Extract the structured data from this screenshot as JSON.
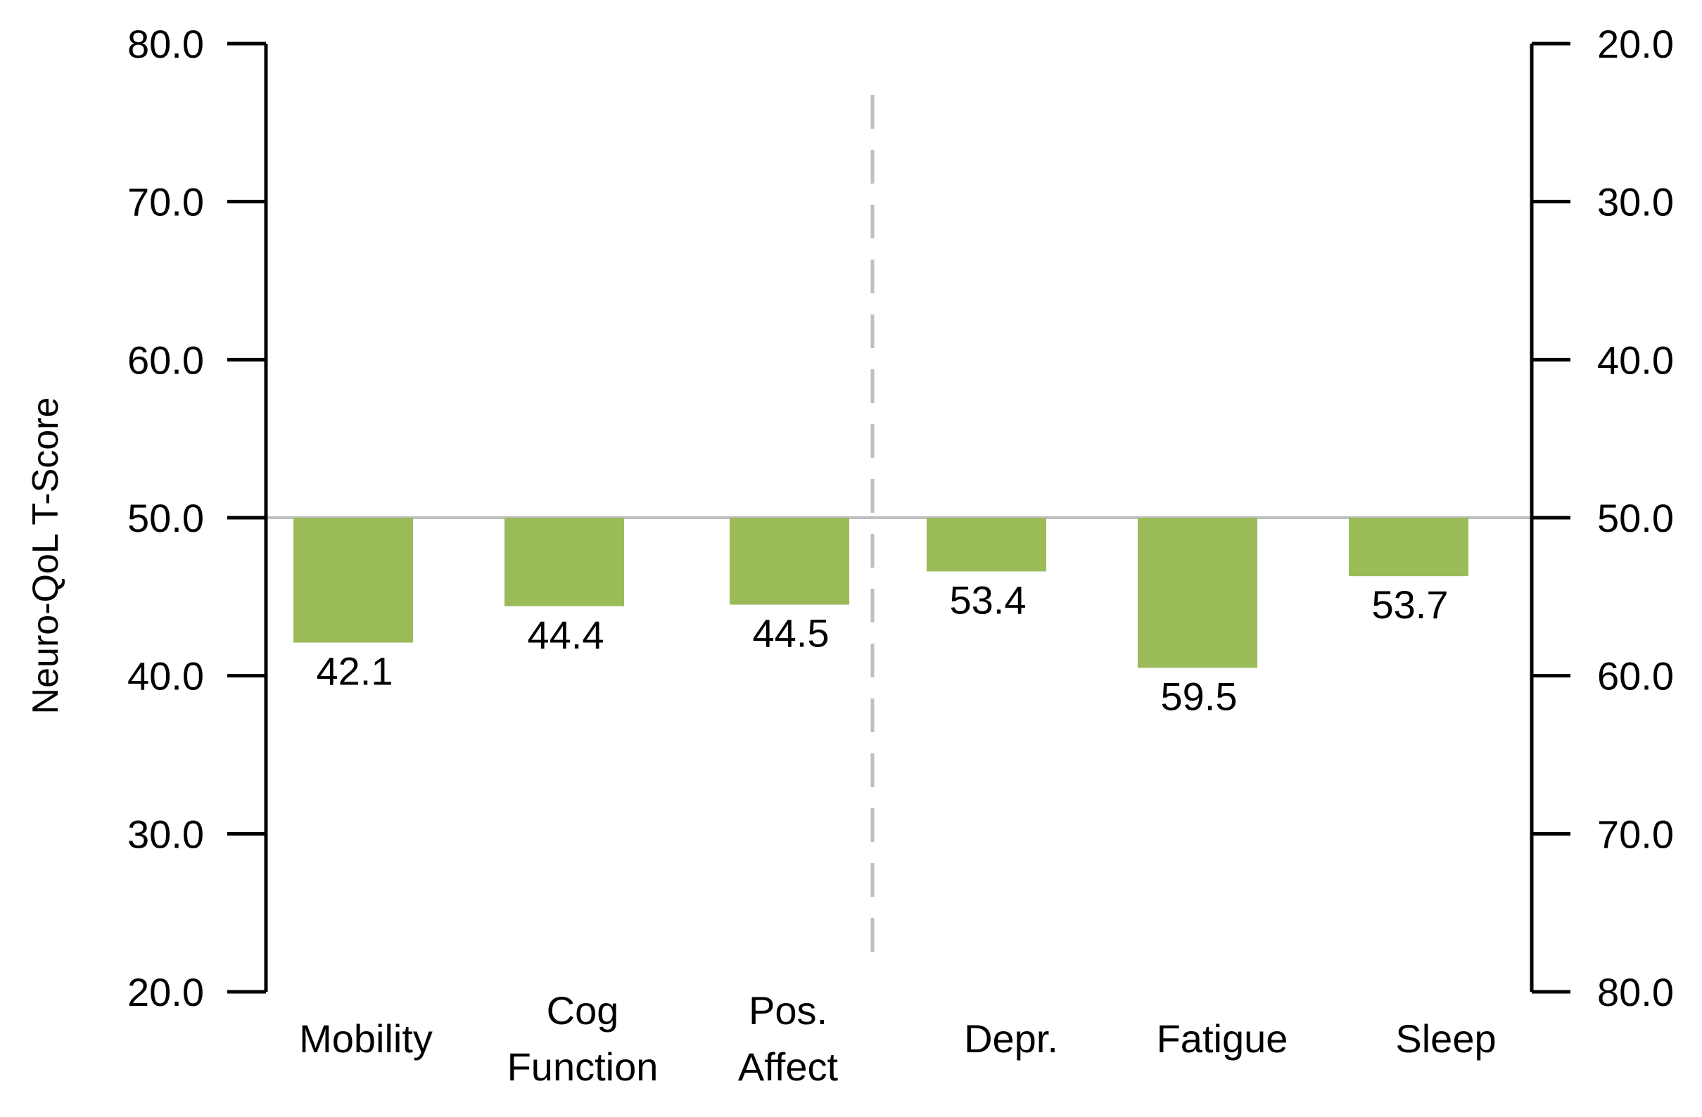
{
  "chart_data": {
    "type": "bar",
    "ylabel": "Neuro-QoL T-Score",
    "baseline": 50.0,
    "ylim": [
      20.0,
      80.0
    ],
    "yticks": [
      "20.0",
      "30.0",
      "40.0",
      "50.0",
      "60.0",
      "70.0",
      "80.0"
    ],
    "y2ticks": [
      "80.0",
      "70.0",
      "60.0",
      "50.0",
      "40.0",
      "30.0",
      "20.0"
    ],
    "y2lim": [
      80.0,
      20.0
    ],
    "categories": [
      {
        "lines": [
          "Mobility"
        ]
      },
      {
        "lines": [
          "Cog",
          "Function"
        ]
      },
      {
        "lines": [
          "Pos.",
          "Affect"
        ]
      },
      {
        "lines": [
          "Depr."
        ]
      },
      {
        "lines": [
          "Fatigue"
        ]
      },
      {
        "lines": [
          "Sleep"
        ]
      }
    ],
    "values": [
      42.1,
      44.4,
      44.5,
      53.4,
      59.5,
      53.7
    ],
    "value_labels": [
      "42.1",
      "44.4",
      "44.5",
      "53.4",
      "59.5",
      "53.7"
    ],
    "axis_assignment": [
      "left",
      "left",
      "left",
      "right",
      "right",
      "right"
    ],
    "bar_color": "#9bbb59",
    "baseline_color": "#bfbfbf",
    "divider_color": "#bfbfbf",
    "grid": false,
    "legend": "none"
  }
}
